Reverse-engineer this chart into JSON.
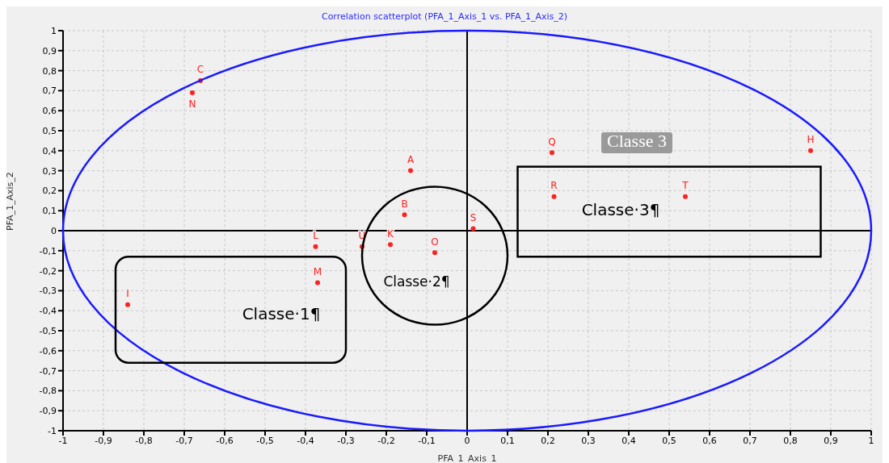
{
  "chart_data": {
    "type": "scatter",
    "title": "Correlation scatterplot (PFA_1_Axis_1 vs. PFA_1_Axis_2)",
    "xlabel": "PFA_1_Axis_1",
    "ylabel": "PFA_1_Axis_2",
    "xlim": [
      -1,
      1
    ],
    "ylim": [
      -1,
      1
    ],
    "xticks": [
      -1,
      {
        "value": -0.9,
        "label": "-0,9"
      },
      {
        "value": -0.8,
        "label": "-0,8"
      },
      {
        "value": -0.7,
        "label": "-0,7"
      },
      {
        "value": -0.6,
        "label": "-0,6"
      },
      {
        "value": -0.5,
        "label": "-0,5"
      },
      {
        "value": -0.4,
        "label": "-0,4"
      },
      {
        "value": -0.3,
        "label": "-0,3"
      },
      {
        "value": -0.2,
        "label": "-0,2"
      },
      {
        "value": -0.1,
        "label": "-0,1"
      },
      0,
      {
        "value": 0.1,
        "label": "0,1"
      },
      {
        "value": 0.2,
        "label": "0,2"
      },
      {
        "value": 0.3,
        "label": "0,3"
      },
      {
        "value": 0.4,
        "label": "0,4"
      },
      {
        "value": 0.5,
        "label": "0,5"
      },
      {
        "value": 0.6,
        "label": "0,6"
      },
      {
        "value": 0.7,
        "label": "0,7"
      },
      {
        "value": 0.8,
        "label": "0,8"
      },
      {
        "value": 0.9,
        "label": "0,9"
      },
      1
    ],
    "yticks": [
      -1,
      {
        "value": -0.9,
        "label": "-0,9"
      },
      {
        "value": -0.8,
        "label": "-0,8"
      },
      {
        "value": -0.7,
        "label": "-0,7"
      },
      {
        "value": -0.6,
        "label": "-0,6"
      },
      {
        "value": -0.5,
        "label": "-0,5"
      },
      {
        "value": -0.4,
        "label": "-0,4"
      },
      {
        "value": -0.3,
        "label": "-0,3"
      },
      {
        "value": -0.2,
        "label": "-0,2"
      },
      {
        "value": -0.1,
        "label": "-0,1"
      },
      0,
      {
        "value": 0.1,
        "label": "0,1"
      },
      {
        "value": 0.2,
        "label": "0,2"
      },
      {
        "value": 0.3,
        "label": "0,3"
      },
      {
        "value": 0.4,
        "label": "0,4"
      },
      {
        "value": 0.5,
        "label": "0,5"
      },
      {
        "value": 0.6,
        "label": "0,6"
      },
      {
        "value": 0.7,
        "label": "0,7"
      },
      {
        "value": 0.8,
        "label": "0,8"
      },
      {
        "value": 0.9,
        "label": "0,9"
      },
      1
    ],
    "grid": true,
    "marker": "circle",
    "series": [
      {
        "type": "line",
        "color": "#000000",
        "marker": "none",
        "x": [
          0,
          0
        ],
        "values": [
          -1,
          1
        ]
      },
      {
        "type": "line",
        "color": "#000000",
        "marker": "none",
        "x": [
          -1,
          1
        ],
        "values": [
          0,
          0
        ]
      },
      {
        "name": "C",
        "color": "#ff2020",
        "x": [
          -0.66
        ],
        "values": [
          0.75
        ]
      },
      {
        "name": "N",
        "color": "#ff2020",
        "x": [
          -0.68
        ],
        "values": [
          0.69
        ]
      },
      {
        "name": "A",
        "color": "#ff2020",
        "x": [
          -0.14
        ],
        "values": [
          0.3
        ]
      },
      {
        "name": "B",
        "color": "#ff2020",
        "x": [
          -0.155
        ],
        "values": [
          0.08
        ]
      },
      {
        "name": "S",
        "color": "#ff2020",
        "x": [
          0.015
        ],
        "values": [
          0.01
        ]
      },
      {
        "name": "L",
        "color": "#ff2020",
        "x": [
          -0.375
        ],
        "values": [
          -0.08
        ]
      },
      {
        "name": "U",
        "color": "#ff2020",
        "x": [
          -0.26
        ],
        "values": [
          -0.08
        ]
      },
      {
        "name": "K",
        "color": "#ff2020",
        "x": [
          -0.19
        ],
        "values": [
          -0.07
        ]
      },
      {
        "name": "O",
        "color": "#ff2020",
        "x": [
          -0.08
        ],
        "values": [
          -0.11
        ]
      },
      {
        "name": "M",
        "color": "#ff2020",
        "x": [
          -0.37
        ],
        "values": [
          -0.26
        ]
      },
      {
        "name": "I",
        "color": "#ff2020",
        "x": [
          -0.84
        ],
        "values": [
          -0.37
        ]
      },
      {
        "name": "Q",
        "color": "#ff2020",
        "x": [
          0.21
        ],
        "values": [
          0.39
        ]
      },
      {
        "name": "R",
        "color": "#ff2020",
        "x": [
          0.215
        ],
        "values": [
          0.17
        ]
      },
      {
        "name": "T",
        "color": "#ff2020",
        "x": [
          0.54
        ],
        "values": [
          0.17
        ]
      },
      {
        "name": "H",
        "color": "#ff2020",
        "x": [
          0.85
        ],
        "values": [
          0.4
        ]
      }
    ],
    "annotations": [
      "Classe·1¶",
      "Classe·2¶",
      "Classe·3¶",
      "Classe 3"
    ]
  }
}
